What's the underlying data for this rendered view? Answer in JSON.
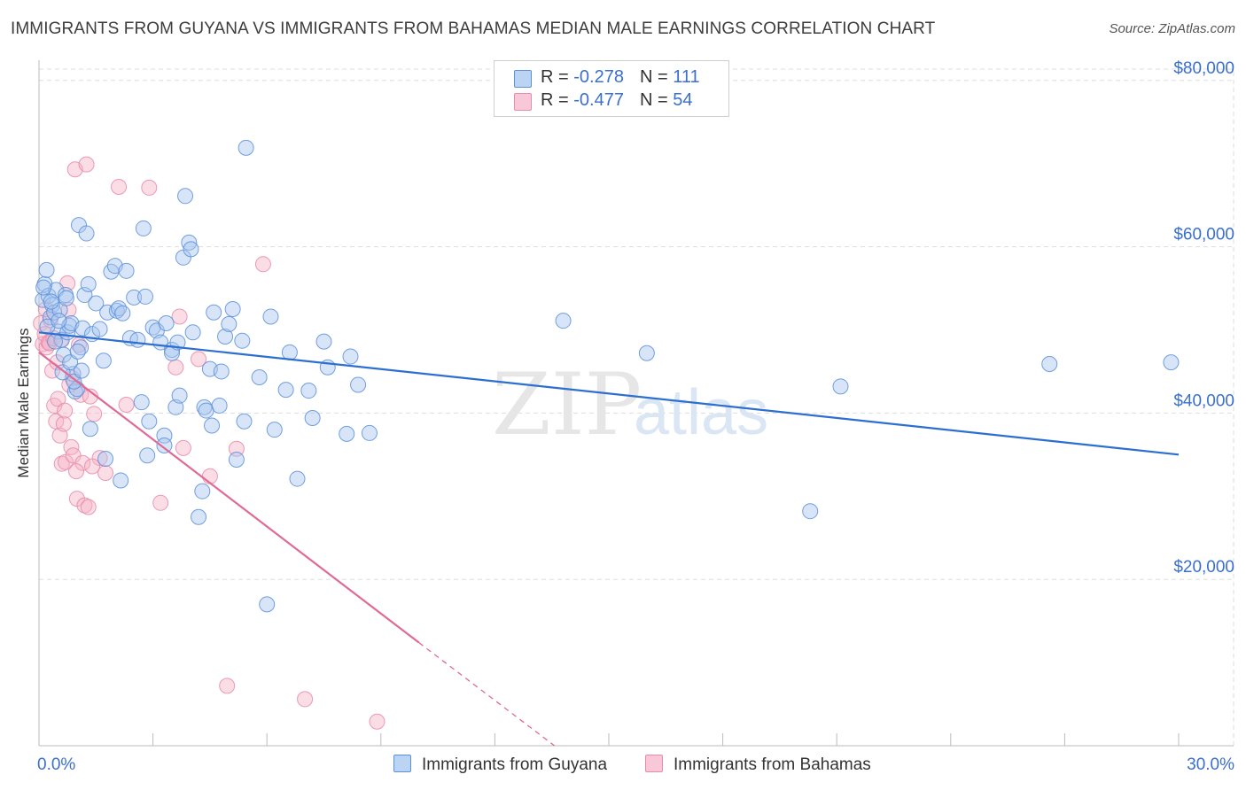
{
  "title": "IMMIGRANTS FROM GUYANA VS IMMIGRANTS FROM BAHAMAS MEDIAN MALE EARNINGS CORRELATION CHART",
  "source": "Source: ZipAtlas.com",
  "watermark": {
    "zip": "ZIP",
    "atlas": "atlas"
  },
  "legend": {
    "guyana": {
      "r_label": "R = ",
      "r_value": "-0.278",
      "n_label": "N = ",
      "n_value": "111"
    },
    "bahamas": {
      "r_label": "R = ",
      "r_value": "-0.477",
      "n_label": "N = ",
      "n_value": "54"
    }
  },
  "colors": {
    "guyana_fill": "#a9c6f0",
    "guyana_stroke": "#5b8fd9",
    "guyana_line": "#2c6fd1",
    "bahamas_fill": "#f6b3c8",
    "bahamas_stroke": "#e88aa9",
    "bahamas_line": "#e06a96",
    "axis_text": "#3a6fd1",
    "grid": "#dddddd"
  },
  "chart_data": {
    "type": "scatter",
    "title": "IMMIGRANTS FROM GUYANA VS IMMIGRANTS FROM BAHAMAS MEDIAN MALE EARNINGS CORRELATION CHART",
    "xlabel": "",
    "ylabel": "Median Male Earnings",
    "xlim": [
      0,
      30
    ],
    "ylim": [
      0,
      82000
    ],
    "x_tick_labels": [
      "0.0%",
      "30.0%"
    ],
    "y_ticks": [
      20000,
      40000,
      60000,
      80000
    ],
    "y_tick_labels": [
      "$20,000",
      "$40,000",
      "$60,000",
      "$80,000"
    ],
    "grid": true,
    "legend_position": "top-center",
    "series": [
      {
        "name": "Immigrants from Guyana",
        "trend": {
          "x": [
            0,
            30
          ],
          "y": [
            49700,
            35000
          ]
        },
        "points": [
          [
            0.1,
            53600
          ],
          [
            0.15,
            55500
          ],
          [
            0.2,
            57200
          ],
          [
            0.25,
            54100
          ],
          [
            0.3,
            51500
          ],
          [
            0.35,
            53000
          ],
          [
            0.4,
            52100
          ],
          [
            0.45,
            54800
          ],
          [
            0.5,
            49800
          ],
          [
            0.55,
            52400
          ],
          [
            0.6,
            48800
          ],
          [
            0.65,
            47000
          ],
          [
            0.7,
            54200
          ],
          [
            0.75,
            49700
          ],
          [
            0.8,
            50500
          ],
          [
            0.85,
            50800
          ],
          [
            0.9,
            44700
          ],
          [
            0.95,
            42600
          ],
          [
            1.0,
            42900
          ],
          [
            1.05,
            62600
          ],
          [
            1.1,
            47900
          ],
          [
            1.15,
            50200
          ],
          [
            1.2,
            54200
          ],
          [
            1.25,
            61600
          ],
          [
            1.3,
            55500
          ],
          [
            1.35,
            38100
          ],
          [
            1.4,
            49500
          ],
          [
            1.5,
            53200
          ],
          [
            1.6,
            50100
          ],
          [
            1.7,
            46300
          ],
          [
            1.75,
            34500
          ],
          [
            1.8,
            52100
          ],
          [
            1.9,
            57000
          ],
          [
            2.0,
            57700
          ],
          [
            2.05,
            52300
          ],
          [
            2.1,
            52600
          ],
          [
            2.15,
            31900
          ],
          [
            2.2,
            52000
          ],
          [
            2.3,
            57100
          ],
          [
            2.4,
            49000
          ],
          [
            2.5,
            53900
          ],
          [
            2.6,
            48800
          ],
          [
            2.7,
            41300
          ],
          [
            2.75,
            62200
          ],
          [
            2.8,
            54000
          ],
          [
            2.85,
            34900
          ],
          [
            2.9,
            39000
          ],
          [
            3.0,
            50300
          ],
          [
            3.1,
            49900
          ],
          [
            3.2,
            48500
          ],
          [
            3.3,
            37300
          ],
          [
            3.3,
            36100
          ],
          [
            3.35,
            50800
          ],
          [
            3.5,
            47600
          ],
          [
            3.5,
            47200
          ],
          [
            3.6,
            40700
          ],
          [
            3.65,
            48500
          ],
          [
            3.7,
            42100
          ],
          [
            3.8,
            58700
          ],
          [
            3.85,
            66100
          ],
          [
            3.95,
            60500
          ],
          [
            4.0,
            59700
          ],
          [
            4.05,
            49700
          ],
          [
            4.2,
            27500
          ],
          [
            4.3,
            30600
          ],
          [
            4.35,
            40700
          ],
          [
            4.4,
            40300
          ],
          [
            4.5,
            45300
          ],
          [
            4.55,
            38500
          ],
          [
            4.6,
            52100
          ],
          [
            4.75,
            40900
          ],
          [
            4.8,
            45000
          ],
          [
            4.9,
            49200
          ],
          [
            5.0,
            50700
          ],
          [
            5.1,
            52500
          ],
          [
            5.2,
            34400
          ],
          [
            5.35,
            48700
          ],
          [
            5.4,
            39000
          ],
          [
            5.45,
            71900
          ],
          [
            5.8,
            44300
          ],
          [
            6.0,
            17000
          ],
          [
            6.1,
            51600
          ],
          [
            6.2,
            38000
          ],
          [
            6.5,
            42800
          ],
          [
            6.6,
            47300
          ],
          [
            6.8,
            32100
          ],
          [
            7.1,
            42700
          ],
          [
            7.2,
            39400
          ],
          [
            7.5,
            48600
          ],
          [
            7.6,
            45500
          ],
          [
            8.1,
            37500
          ],
          [
            8.2,
            46800
          ],
          [
            8.4,
            43400
          ],
          [
            8.7,
            37600
          ],
          [
            13.8,
            51100
          ],
          [
            16.0,
            47200
          ],
          [
            20.3,
            28200
          ],
          [
            21.1,
            43200
          ],
          [
            26.6,
            45900
          ],
          [
            29.8,
            46100
          ],
          [
            0.12,
            55100
          ],
          [
            0.22,
            50400
          ],
          [
            0.32,
            53400
          ],
          [
            0.42,
            48600
          ],
          [
            0.52,
            51100
          ],
          [
            0.62,
            44900
          ],
          [
            0.72,
            53800
          ],
          [
            0.82,
            46100
          ],
          [
            0.92,
            43800
          ],
          [
            1.02,
            47400
          ],
          [
            1.12,
            45100
          ]
        ]
      },
      {
        "name": "Immigrants from Bahamas",
        "trend": {
          "x": [
            0,
            10
          ],
          "y": [
            47300,
            12400
          ]
        },
        "trend_extension": {
          "x": [
            10,
            14
          ],
          "y": [
            12400,
            -1500
          ]
        },
        "points": [
          [
            0.05,
            50800
          ],
          [
            0.1,
            48300
          ],
          [
            0.15,
            49500
          ],
          [
            0.2,
            47900
          ],
          [
            0.25,
            48500
          ],
          [
            0.3,
            51200
          ],
          [
            0.35,
            45100
          ],
          [
            0.4,
            40900
          ],
          [
            0.45,
            39000
          ],
          [
            0.5,
            41700
          ],
          [
            0.55,
            37300
          ],
          [
            0.6,
            33900
          ],
          [
            0.65,
            38700
          ],
          [
            0.7,
            34100
          ],
          [
            0.75,
            55600
          ],
          [
            0.8,
            43400
          ],
          [
            0.85,
            35900
          ],
          [
            0.9,
            34900
          ],
          [
            0.95,
            69300
          ],
          [
            1.0,
            29700
          ],
          [
            1.1,
            42200
          ],
          [
            1.15,
            34000
          ],
          [
            1.2,
            28900
          ],
          [
            1.25,
            69900
          ],
          [
            1.3,
            28700
          ],
          [
            1.35,
            42000
          ],
          [
            1.45,
            39900
          ],
          [
            1.6,
            34600
          ],
          [
            1.75,
            32800
          ],
          [
            2.1,
            67200
          ],
          [
            2.3,
            41000
          ],
          [
            2.9,
            67100
          ],
          [
            3.2,
            29200
          ],
          [
            3.6,
            45500
          ],
          [
            3.7,
            51600
          ],
          [
            3.8,
            35800
          ],
          [
            4.2,
            46500
          ],
          [
            4.5,
            32400
          ],
          [
            4.95,
            7200
          ],
          [
            5.2,
            35700
          ],
          [
            5.9,
            57900
          ],
          [
            7.0,
            5600
          ],
          [
            8.9,
            2900
          ],
          [
            0.18,
            52500
          ],
          [
            0.28,
            48400
          ],
          [
            0.38,
            49000
          ],
          [
            0.48,
            46100
          ],
          [
            0.58,
            48800
          ],
          [
            0.68,
            40300
          ],
          [
            0.78,
            52400
          ],
          [
            0.88,
            44200
          ],
          [
            0.98,
            33000
          ],
          [
            1.05,
            48200
          ],
          [
            1.4,
            33600
          ]
        ]
      }
    ]
  }
}
